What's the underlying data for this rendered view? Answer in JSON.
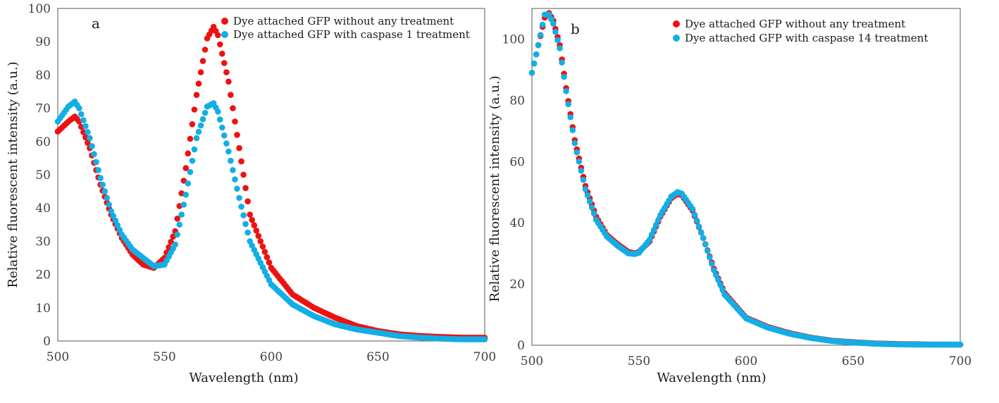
{
  "chart_data": [
    {
      "type": "scatter",
      "panel_label": "a",
      "title": "",
      "xlabel": "Wavelength (nm)",
      "ylabel": "Relative fluorescent intensity (a.u.)",
      "xlim": [
        500,
        700
      ],
      "ylim": [
        0,
        100
      ],
      "xticks": [
        500,
        550,
        600,
        650,
        700
      ],
      "yticks": [
        0,
        10,
        20,
        30,
        40,
        50,
        60,
        70,
        80,
        90,
        100
      ],
      "grid": false,
      "legend_position": "top-right",
      "series": [
        {
          "name": "Dye attached GFP without any treatment",
          "color": "#ee1111",
          "x": [
            500,
            505,
            508,
            510,
            515,
            520,
            525,
            530,
            535,
            540,
            545,
            550,
            555,
            560,
            565,
            570,
            573,
            575,
            580,
            585,
            590,
            600,
            610,
            620,
            630,
            640,
            650,
            660,
            670,
            680,
            690,
            700
          ],
          "y": [
            63,
            66,
            67.5,
            66,
            58,
            47,
            38,
            31,
            26,
            23,
            22,
            25,
            33,
            52,
            74,
            91,
            94.5,
            92,
            78,
            58,
            38,
            22,
            14,
            10,
            7,
            4.5,
            3,
            2,
            1.5,
            1.2,
            1,
            1
          ]
        },
        {
          "name": "Dye attached GFP with caspase 1 treatment",
          "color": "#12aee6",
          "x": [
            500,
            505,
            508,
            510,
            515,
            520,
            525,
            530,
            535,
            540,
            545,
            550,
            555,
            560,
            565,
            570,
            573,
            575,
            580,
            585,
            590,
            600,
            610,
            620,
            630,
            640,
            650,
            660,
            670,
            680,
            690,
            700
          ],
          "y": [
            66,
            70.5,
            72,
            70,
            61,
            49,
            39,
            32,
            27.5,
            25,
            22.5,
            23,
            29,
            44,
            61,
            70.5,
            71.5,
            69,
            57,
            43,
            30,
            17,
            11,
            7.5,
            5,
            3.5,
            2.5,
            1.5,
            1,
            0.7,
            0.5,
            0.5
          ]
        }
      ]
    },
    {
      "type": "scatter",
      "panel_label": "b",
      "title": "",
      "xlabel": "Wavelength (nm)",
      "ylabel": "Relative fluorescent intensity (a.u.)",
      "xlim": [
        500,
        700
      ],
      "ylim": [
        0,
        110
      ],
      "xticks": [
        500,
        550,
        600,
        650,
        700
      ],
      "yticks": [
        0,
        20,
        40,
        60,
        80,
        100
      ],
      "grid": false,
      "legend_position": "top-right",
      "series": [
        {
          "name": "Dye attached GFP without any treatment",
          "color": "#ee1111",
          "x": [
            500,
            503,
            506,
            508,
            510,
            513,
            516,
            520,
            525,
            530,
            535,
            540,
            545,
            548,
            550,
            555,
            560,
            565,
            568,
            570,
            575,
            580,
            585,
            590,
            600,
            610,
            620,
            630,
            640,
            650,
            660,
            670,
            680,
            690,
            700
          ],
          "y": [
            89,
            98,
            107,
            108.5,
            106,
            98,
            84,
            67,
            52,
            42,
            36,
            33,
            30.5,
            30,
            30.5,
            34,
            42,
            48,
            49.5,
            49,
            44,
            35,
            25,
            17,
            9,
            6,
            4,
            2.5,
            1.5,
            1,
            0.6,
            0.4,
            0.3,
            0.2,
            0.2
          ]
        },
        {
          "name": "Dye attached GFP with caspase 14 treatment",
          "color": "#12aee6",
          "x": [
            500,
            503,
            506,
            508,
            510,
            513,
            516,
            520,
            525,
            530,
            535,
            540,
            545,
            548,
            550,
            555,
            560,
            565,
            568,
            570,
            575,
            580,
            585,
            590,
            600,
            610,
            620,
            630,
            640,
            650,
            660,
            670,
            680,
            690,
            700
          ],
          "y": [
            89,
            98,
            108,
            108,
            105,
            97,
            83,
            66,
            51,
            41,
            35.5,
            32.5,
            30,
            29.8,
            30.2,
            34.5,
            42.5,
            48.5,
            50,
            49.5,
            44.5,
            35,
            24.5,
            16.5,
            8.8,
            5.8,
            3.8,
            2.4,
            1.4,
            0.9,
            0.5,
            0.3,
            0.2,
            0.2,
            0.2
          ]
        }
      ]
    }
  ]
}
